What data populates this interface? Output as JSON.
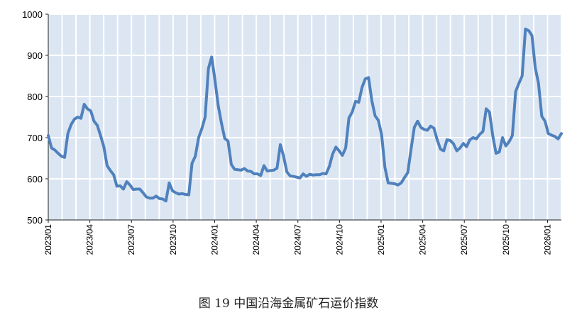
{
  "caption": "图 19 中国沿海金属矿石运价指数",
  "chart_data": {
    "type": "line",
    "title": "",
    "xlabel": "",
    "ylabel": "",
    "ylim": [
      500,
      1000
    ],
    "yticks": [
      500,
      600,
      700,
      800,
      900,
      1000
    ],
    "xticks": [
      "2023/01",
      "2023/04",
      "2023/07",
      "2023/10",
      "2024/01",
      "2024/04",
      "2024/07",
      "2024/10",
      "2025/01",
      "2025/04",
      "2025/07",
      "2025/10",
      "2026/01"
    ],
    "grid": true,
    "colors": {
      "line": "#4f81bd",
      "plot_bg": "#dce6f2",
      "grid": "#ffffff"
    },
    "series": [
      {
        "values": [
          705,
          675,
          670,
          662,
          655,
          652,
          710,
          732,
          745,
          750,
          747,
          781,
          770,
          765,
          740,
          730,
          705,
          678,
          632,
          620,
          610,
          582,
          583,
          575,
          593,
          585,
          574,
          575,
          575,
          566,
          556,
          553,
          553,
          558,
          552,
          551,
          546,
          590,
          571,
          566,
          563,
          564,
          562,
          561,
          638,
          655,
          700,
          722,
          750,
          868,
          896,
          840,
          778,
          735,
          698,
          692,
          635,
          623,
          622,
          621,
          625,
          619,
          618,
          612,
          612,
          608,
          632,
          619,
          620,
          621,
          626,
          683,
          655,
          617,
          607,
          606,
          604,
          602,
          612,
          606,
          611,
          609,
          610,
          610,
          613,
          612,
          630,
          660,
          677,
          668,
          657,
          675,
          748,
          762,
          788,
          786,
          822,
          843,
          846,
          790,
          753,
          742,
          707,
          628,
          590,
          589,
          588,
          585,
          590,
          603,
          615,
          672,
          725,
          740,
          725,
          720,
          718,
          728,
          723,
          695,
          672,
          668,
          695,
          693,
          685,
          668,
          675,
          686,
          678,
          695,
          700,
          697,
          708,
          715,
          770,
          762,
          705,
          662,
          665,
          700,
          680,
          690,
          705,
          812,
          832,
          850,
          964,
          960,
          948,
          870,
          832,
          752,
          740,
          710,
          706,
          703,
          697,
          710
        ]
      }
    ]
  }
}
